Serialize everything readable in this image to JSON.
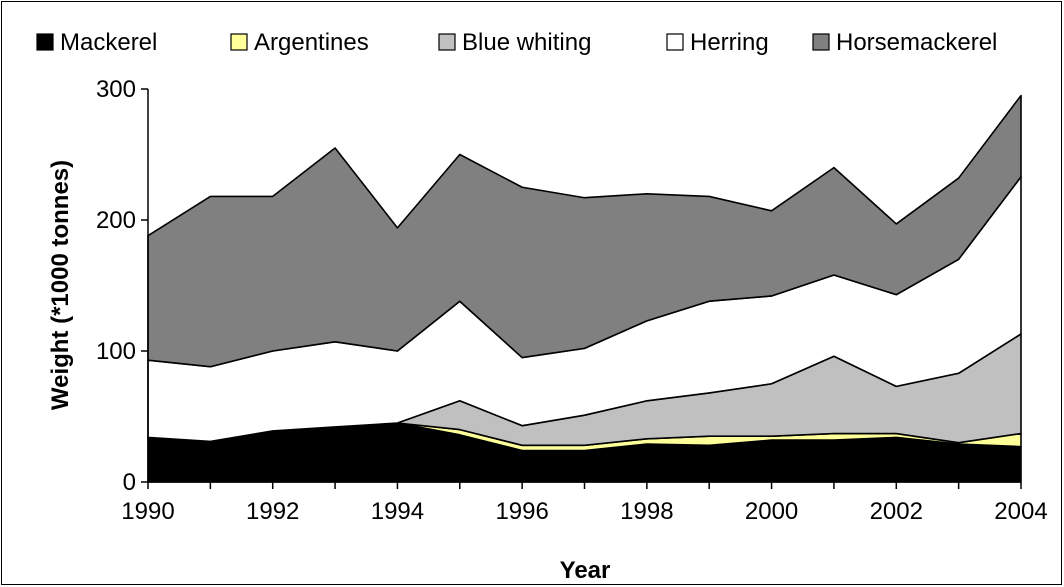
{
  "chart_data": {
    "type": "area",
    "stacked": true,
    "title": "",
    "xlabel": "Year",
    "ylabel": "Weight (*1000 tonnes)",
    "x": [
      1990,
      1991,
      1992,
      1993,
      1994,
      1995,
      1996,
      1997,
      1998,
      1999,
      2000,
      2001,
      2002,
      2003,
      2004
    ],
    "x_tick_labels": [
      "1990",
      "1992",
      "1994",
      "1996",
      "1998",
      "2000",
      "2002",
      "2004"
    ],
    "ylim": [
      0,
      300
    ],
    "y_tick_labels": [
      "0",
      "100",
      "200",
      "300"
    ],
    "grid": false,
    "legend_position": "top",
    "series": [
      {
        "name": "Mackerel",
        "color": "#000000",
        "values": [
          34,
          31,
          39,
          42,
          45,
          36,
          24,
          24,
          29,
          28,
          32,
          32,
          34,
          29,
          27
        ]
      },
      {
        "name": "Argentines",
        "color": "#ffff99",
        "values": [
          0,
          0,
          0,
          0,
          0,
          4,
          4,
          4,
          4,
          7,
          3,
          5,
          3,
          1,
          10
        ]
      },
      {
        "name": "Blue whiting",
        "color": "#c0c0c0",
        "values": [
          0,
          0,
          0,
          0,
          0,
          22,
          15,
          23,
          29,
          33,
          40,
          59,
          36,
          53,
          76
        ]
      },
      {
        "name": "Herring",
        "color": "#ffffff",
        "values": [
          59,
          57,
          61,
          65,
          55,
          76,
          52,
          51,
          61,
          70,
          67,
          62,
          70,
          87,
          120
        ]
      },
      {
        "name": "Horsemackerel",
        "color": "#808080",
        "values": [
          95,
          130,
          118,
          148,
          94,
          112,
          130,
          115,
          97,
          80,
          65,
          82,
          54,
          62,
          62
        ]
      }
    ]
  }
}
